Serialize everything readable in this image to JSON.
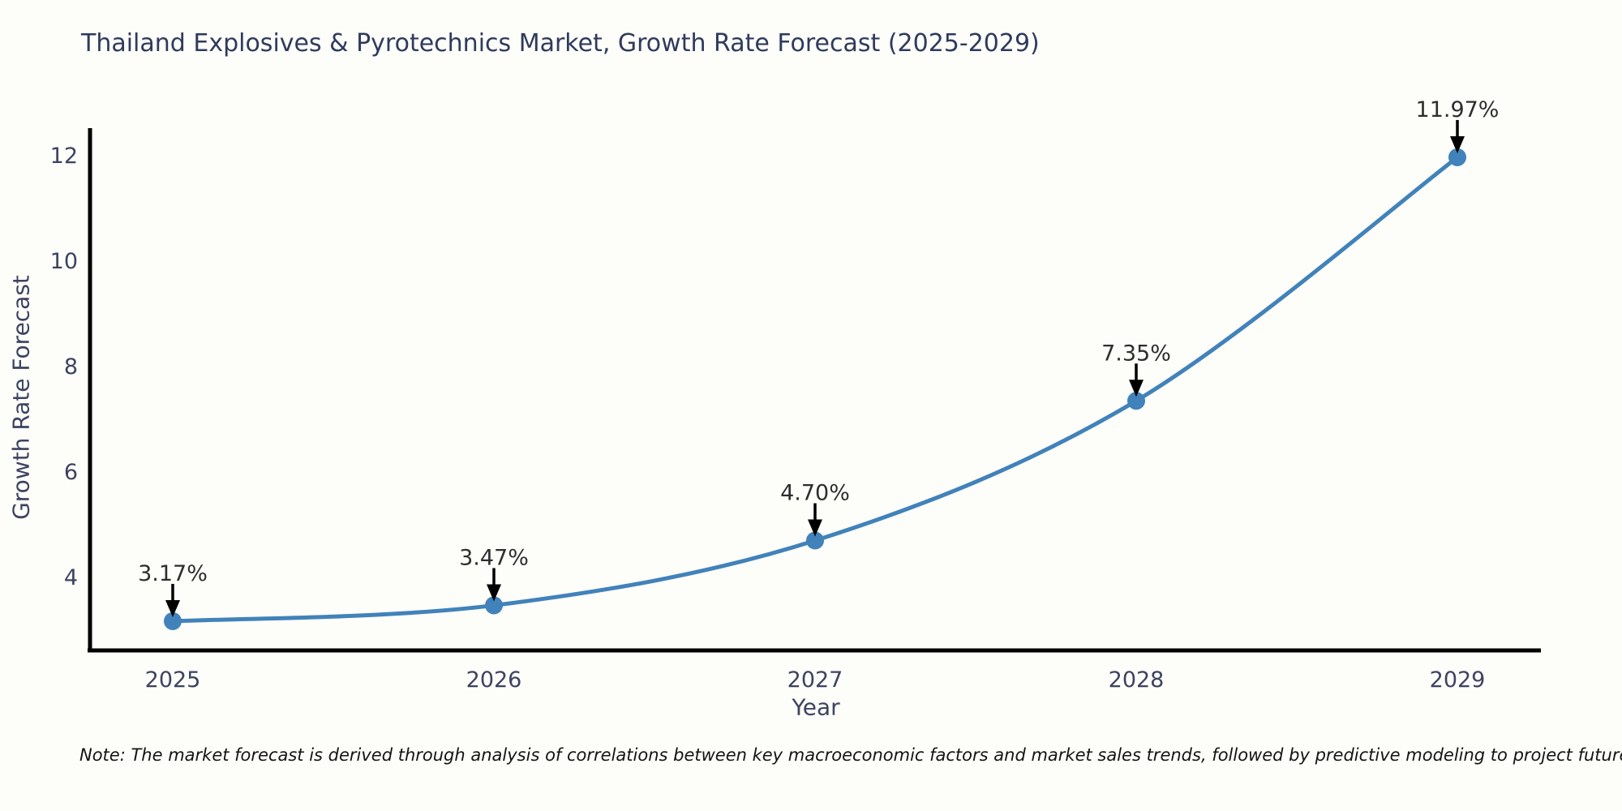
{
  "chart_data": {
    "type": "line",
    "title": "Thailand Explosives & Pyrotechnics Market, Growth Rate Forecast (2025-2029)",
    "xlabel": "Year",
    "ylabel": "Growth Rate Forecast",
    "categories": [
      "2025",
      "2026",
      "2027",
      "2028",
      "2029"
    ],
    "values": [
      3.17,
      3.47,
      4.7,
      7.35,
      11.97
    ],
    "point_labels": [
      "3.17%",
      "3.47%",
      "4.70%",
      "7.35%",
      "11.97%"
    ],
    "yticks": [
      4,
      6,
      8,
      10,
      12
    ],
    "ylim": [
      2.9,
      12.75
    ],
    "grid": false,
    "legend": null,
    "note": "Note: The market forecast is derived through analysis of correlations between key macroeconomic factors and market sales trends, followed by predictive modeling to project future sales",
    "colors": {
      "line": "#4182ba",
      "marker": "#4182ba",
      "axis": "#000000",
      "title": "#2f3b5c",
      "tick": "#3d4360",
      "annotation": "#2e2e2e",
      "arrow": "#000000",
      "background": "#fdfdf9"
    }
  }
}
